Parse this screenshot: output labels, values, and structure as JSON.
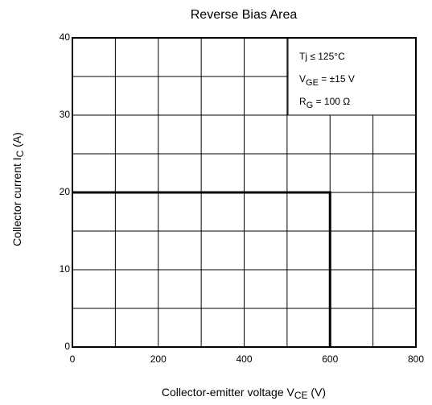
{
  "chart_data": {
    "type": "line",
    "title": "Reverse Bias Area",
    "x_label": {
      "text": "Collector-emitter voltage   V",
      "sub": "CE",
      "after": "   (V)"
    },
    "y_label": {
      "text": "Collector current   I",
      "sub": "C",
      "after": "   (A)"
    },
    "annotations": [
      {
        "text": "Tj ≤ 125°C"
      },
      {
        "text": "V",
        "sub": "GE",
        "after": " = ±15 V"
      },
      {
        "text": "R",
        "sub": "G",
        "after": " = 100 Ω"
      }
    ],
    "xlim": [
      0,
      800
    ],
    "xticks": [
      0,
      200,
      400,
      600,
      800
    ],
    "x_minor_grid": [
      100,
      300,
      500,
      700
    ],
    "ylim": [
      0,
      40
    ],
    "yticks": [
      0,
      10,
      20,
      30,
      40
    ],
    "y_minor_grid": [
      5,
      15,
      25,
      35
    ],
    "grid": true,
    "series": [
      {
        "color": "#000000",
        "x": [
          0,
          600,
          600
        ],
        "values": [
          20,
          20,
          0
        ]
      }
    ]
  }
}
